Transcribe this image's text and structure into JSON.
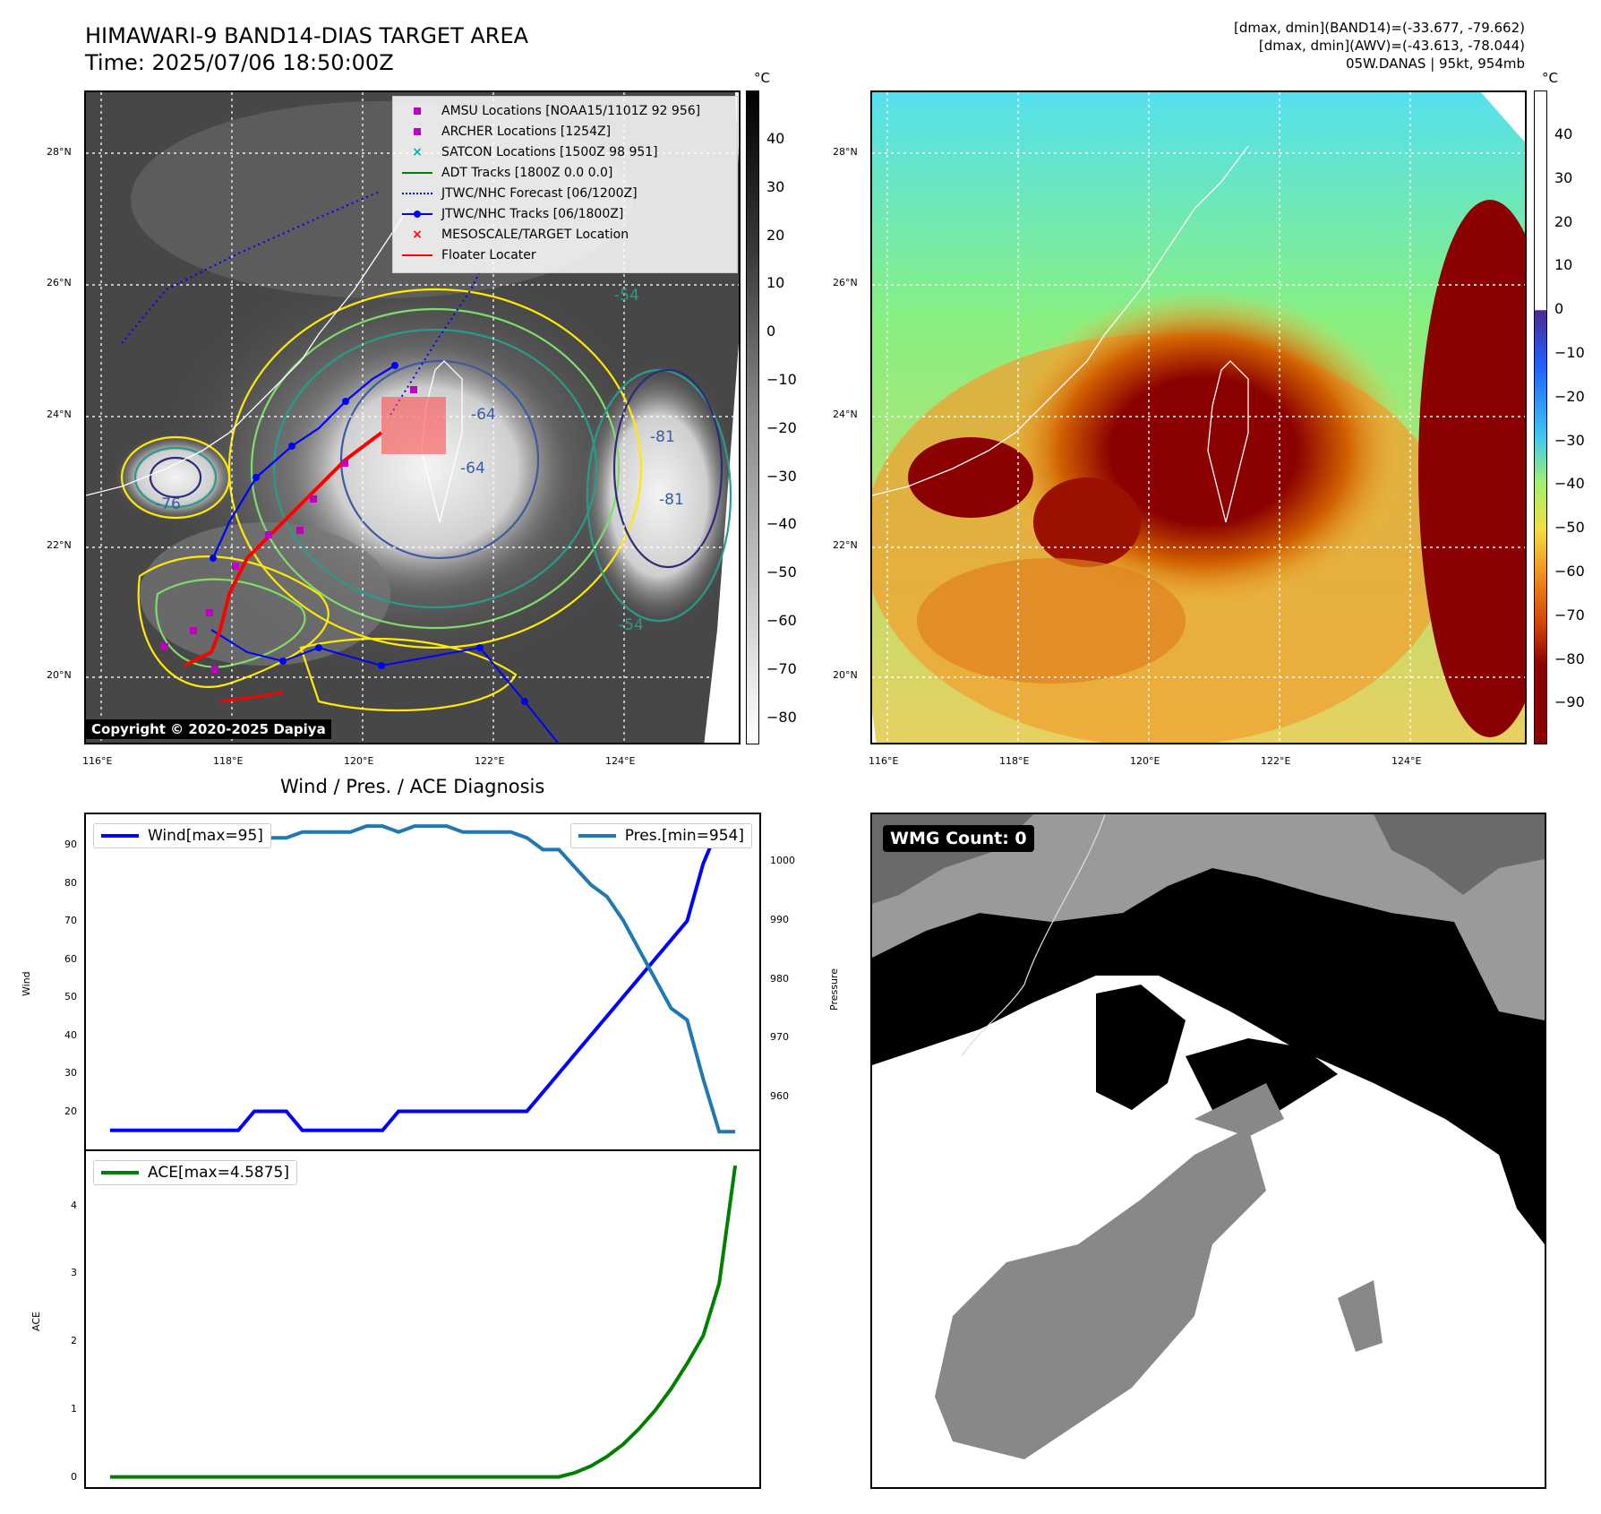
{
  "header": {
    "title_line1": "HIMAWARI-9 BAND14-DIAS TARGET AREA",
    "title_line2": "Time: 2025/07/06 18:50:00Z",
    "info_line1": "[dmax, dmin](BAND14)=(-33.677, -79.662)",
    "info_line2": "[dmax, dmin](AWV)=(-43.613, -78.044)",
    "info_line3": "05W.DANAS | 95kt, 954mb"
  },
  "map": {
    "lon_ticks": [
      "116°E",
      "118°E",
      "120°E",
      "122°E",
      "124°E"
    ],
    "lat_ticks": [
      "28°N",
      "26°N",
      "24°N",
      "22°N",
      "20°N"
    ],
    "copyright": "Copyright © 2020-2025 Dapiya",
    "contour_labels": [
      "-64",
      "-64",
      "-76",
      "-81",
      "-81",
      "-54",
      "-54"
    ],
    "legend": [
      {
        "label": "AMSU Locations [NOAA15/1101Z 92 956]",
        "color": "#c000c0",
        "symbol": "square"
      },
      {
        "label": "ARCHER Locations [1254Z]",
        "color": "#c000c0",
        "symbol": "square"
      },
      {
        "label": "SATCON Locations [1500Z 98 951]",
        "color": "#00b0b0",
        "symbol": "x"
      },
      {
        "label": "ADT Tracks [1800Z 0.0 0.0]",
        "color": "#008000",
        "symbol": "line"
      },
      {
        "label": "JTWC/NHC Forecast [06/1200Z]",
        "color": "#0000ff",
        "symbol": "dotted"
      },
      {
        "label": "JTWC/NHC Tracks [06/1800Z]",
        "color": "#0000ff",
        "symbol": "line-dot"
      },
      {
        "label": "MESOSCALE/TARGET Location",
        "color": "#ff0000",
        "symbol": "x"
      },
      {
        "label": "Floater Locater",
        "color": "#ff0000",
        "symbol": "line"
      }
    ]
  },
  "colorbars": {
    "unit": "°C",
    "left_ticks": [
      "40",
      "30",
      "20",
      "10",
      "0",
      "−10",
      "−20",
      "−30",
      "−40",
      "−50",
      "−60",
      "−70",
      "−80"
    ],
    "right_ticks": [
      "40",
      "30",
      "20",
      "10",
      "0",
      "−10",
      "−20",
      "−30",
      "−40",
      "−50",
      "−60",
      "−70",
      "−80",
      "−90"
    ]
  },
  "diagnosis": {
    "title": "Wind / Pres. / ACE Diagnosis",
    "wind_legend": "Wind[max=95]",
    "pres_legend": "Pres.[min=954]",
    "ace_legend": "ACE[max=4.5875]",
    "wind_ylabel": "Wind",
    "pres_ylabel": "Pressure",
    "ace_ylabel": "ACE",
    "wind_ticks": [
      "90",
      "80",
      "70",
      "60",
      "50",
      "40",
      "30",
      "20"
    ],
    "pres_ticks": [
      "1000",
      "990",
      "980",
      "970",
      "960"
    ],
    "ace_ticks": [
      "4",
      "3",
      "2",
      "1",
      "0"
    ],
    "wind_color": "#0000ff",
    "pres_color": "#1f77b4",
    "ace_color": "#008000"
  },
  "wmg": {
    "label": "WMG Count: 0"
  },
  "chart_data": [
    {
      "type": "line",
      "title": "Wind / Pres. / ACE Diagnosis",
      "x": [
        0,
        1,
        2,
        3,
        4,
        5,
        6,
        7,
        8,
        9,
        10,
        11,
        12,
        13,
        14,
        15,
        16,
        17,
        18,
        19,
        20,
        21,
        22,
        23,
        24,
        25,
        26,
        27,
        28,
        29,
        30,
        31,
        32,
        33,
        34,
        35,
        36,
        37,
        38,
        39
      ],
      "series": [
        {
          "name": "Wind[max=95]",
          "axis": "left",
          "ylabel": "Wind",
          "ylim": [
            10,
            98
          ],
          "values": [
            15,
            15,
            15,
            15,
            15,
            15,
            15,
            15,
            15,
            20,
            20,
            20,
            15,
            15,
            15,
            15,
            15,
            15,
            20,
            20,
            20,
            20,
            20,
            20,
            20,
            20,
            20,
            25,
            30,
            35,
            40,
            45,
            50,
            55,
            60,
            65,
            70,
            85,
            95,
            95
          ]
        },
        {
          "name": "Pres.[min=954]",
          "axis": "right",
          "ylabel": "Pressure",
          "ylim": [
            951,
            1008
          ],
          "values": [
            1005,
            1005,
            1005,
            1005,
            1005,
            1004,
            1004,
            1004,
            1004,
            1004,
            1004,
            1004,
            1005,
            1005,
            1005,
            1005,
            1006,
            1006,
            1005,
            1006,
            1006,
            1006,
            1005,
            1005,
            1005,
            1005,
            1004,
            1002,
            1002,
            999,
            996,
            994,
            990,
            985,
            980,
            975,
            973,
            963,
            954,
            954
          ]
        }
      ]
    },
    {
      "type": "line",
      "x": [
        0,
        1,
        2,
        3,
        4,
        5,
        6,
        7,
        8,
        9,
        10,
        11,
        12,
        13,
        14,
        15,
        16,
        17,
        18,
        19,
        20,
        21,
        22,
        23,
        24,
        25,
        26,
        27,
        28,
        29,
        30,
        31,
        32,
        33,
        34,
        35,
        36,
        37,
        38,
        39
      ],
      "ylabel": "ACE",
      "ylim": [
        -0.15,
        4.8
      ],
      "series": [
        {
          "name": "ACE[max=4.5875]",
          "values": [
            0,
            0,
            0,
            0,
            0,
            0,
            0,
            0,
            0,
            0,
            0,
            0,
            0,
            0,
            0,
            0,
            0,
            0,
            0,
            0,
            0,
            0,
            0,
            0,
            0,
            0,
            0,
            0,
            0,
            0.0625,
            0.16,
            0.3,
            0.48,
            0.71,
            0.98,
            1.3,
            1.67,
            2.08,
            2.85,
            4.5875
          ]
        }
      ]
    }
  ]
}
